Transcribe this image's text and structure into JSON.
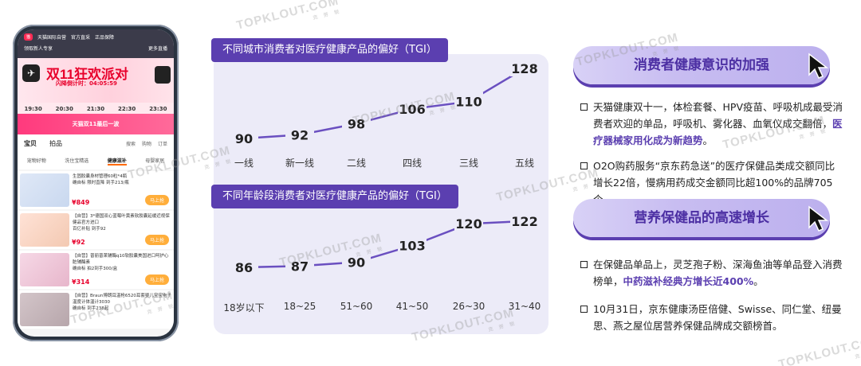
{
  "phone": {
    "app_name": "天猫国际自营",
    "top_tags": [
      "官方直采",
      "正品保障"
    ],
    "top_left": "领取新人专享",
    "top_right": "更多直播",
    "banner_title": "双11狂欢派对",
    "countdown": "闪降倒计时：04:05:59",
    "times": [
      "19:30",
      "20:30",
      "21:30",
      "22:30",
      "23:30"
    ],
    "pink_bar": "天猫双11最后一波",
    "tabs": [
      "宝贝",
      "拍品"
    ],
    "tab_icons": [
      "搜索",
      "购物",
      "订单"
    ],
    "subtabs": [
      "宠物好物",
      "洗住宝精选",
      "健康滋补",
      "母婴家居"
    ],
    "active_subtab": "健康滋补",
    "items": [
      {
        "title": "生固胶囊身材管理60粒*4瓶",
        "sub": "确自标 限时直降 到手213/瓶",
        "price": "¥849",
        "buy": "马上抢"
      },
      {
        "title": "【自营】3*德国双心蓝莓叶黄素软胶囊延缓近视保健品官方进口",
        "sub": "百亿补贴 到手92",
        "price": "¥92",
        "buy": "马上抢"
      },
      {
        "title": "【自营】普丽普莱辅酶q10软胶囊美国进口呵护心脏辅酶素",
        "sub": "确自标 拍2到手300/盒",
        "price": "¥314",
        "buy": "马上抢"
      },
      {
        "title": "【自营】Braun博朗耳温枪6520耳套婴儿宝宝电子温度计体温计3030",
        "sub": "确自标 到手238起",
        "price": "",
        "buy": ""
      }
    ]
  },
  "watermark": "TOPKLOUT.COM",
  "watermark_sub": "克 劳 锐",
  "charts": {
    "city": {
      "title": "不同城市消费者对医疗健康产品的偏好（TGI）",
      "categories": [
        "一线",
        "新一线",
        "二线",
        "四线",
        "三线",
        "五线"
      ],
      "values": [
        90,
        92,
        98,
        106,
        110,
        128
      ]
    },
    "age": {
      "title": "不同年龄段消费者对医疗健康产品的偏好（TGI）",
      "categories": [
        "18岁以下",
        "18~25",
        "51~60",
        "41~50",
        "26~30",
        "31~40"
      ],
      "values": [
        86,
        87,
        90,
        103,
        120,
        122
      ]
    }
  },
  "chart_data": [
    {
      "type": "line",
      "title": "不同城市消费者对医疗健康产品的偏好（TGI）",
      "categories": [
        "一线",
        "新一线",
        "二线",
        "四线",
        "三线",
        "五线"
      ],
      "values": [
        90,
        92,
        98,
        106,
        110,
        128
      ],
      "ylim": [
        80,
        130
      ]
    },
    {
      "type": "line",
      "title": "不同年龄段消费者对医疗健康产品的偏好（TGI）",
      "categories": [
        "18岁以下",
        "18~25",
        "51~60",
        "41~50",
        "26~30",
        "31~40"
      ],
      "values": [
        86,
        87,
        90,
        103,
        120,
        122
      ],
      "ylim": [
        80,
        130
      ]
    }
  ],
  "right": {
    "section1_title": "消费者健康意识的加强",
    "section1_b1_pre": "天猫健康双十一，体检套餐、HPV疫苗、呼吸机成最受消费者欢迎的单品，呼吸机、雾化器、血氧仪成交翻倍，",
    "section1_b1_hl": "医疗器械家用化成为新趋势",
    "section1_b1_post": "。",
    "section1_b2": "O2O购药服务“京东药急送”的医疗保健品类成交额同比增长22倍，慢病用药成交金额同比超100%的品牌705个。",
    "section2_title": "营养保健品的高速增长",
    "section2_b1_pre": "在保健品单品上，灵芝孢子粉、深海鱼油等单品登入消费榜单，",
    "section2_b1_hl": "中药滋补经典方增长近400%",
    "section2_b1_post": "。",
    "section2_b2": "10月31日，京东健康汤臣倍健、Swisse、同仁堂、纽曼思、燕之屋位居营养保健品牌成交额榜首。"
  },
  "colors": {
    "accent": "#5b3fb0",
    "panel": "#ecebf8",
    "pill": "#c8bdf1"
  }
}
